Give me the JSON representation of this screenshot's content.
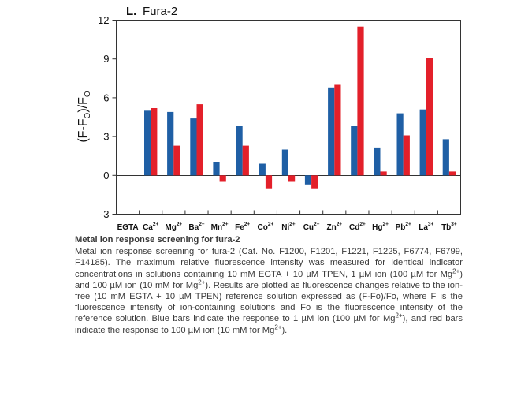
{
  "chart_data": {
    "type": "bar",
    "title_prefix": "L.",
    "title": "Fura-2",
    "ylabel": "(F-F",
    "ylabel_sub": "O",
    "ylabel_tail": ")/F",
    "ylabel_sub2": "O",
    "xlabel": "",
    "ylim": [
      -3,
      12
    ],
    "yticks": [
      "-3",
      "0",
      "3",
      "6",
      "9",
      "12"
    ],
    "grid": false,
    "legend": "none",
    "categories": [
      {
        "base": "EGTA",
        "sup": ""
      },
      {
        "base": "Ca",
        "sup": "2+"
      },
      {
        "base": "Mg",
        "sup": "2+"
      },
      {
        "base": "Ba",
        "sup": "2+"
      },
      {
        "base": "Mn",
        "sup": "2+"
      },
      {
        "base": "Fe",
        "sup": "2+"
      },
      {
        "base": "Co",
        "sup": "2+"
      },
      {
        "base": "Ni",
        "sup": "2+"
      },
      {
        "base": "Cu",
        "sup": "2+"
      },
      {
        "base": "Zn",
        "sup": "2+"
      },
      {
        "base": "Cd",
        "sup": "2+"
      },
      {
        "base": "Hg",
        "sup": "2+"
      },
      {
        "base": "Pb",
        "sup": "2+"
      },
      {
        "base": "La",
        "sup": "3+"
      },
      {
        "base": "Tb",
        "sup": "3+"
      }
    ],
    "series": [
      {
        "color": "#1f5fa5",
        "values": [
          null,
          5.0,
          4.9,
          4.4,
          1.0,
          3.8,
          0.9,
          2.0,
          -0.7,
          6.8,
          3.8,
          2.1,
          4.8,
          5.1,
          2.8
        ]
      },
      {
        "color": "#e3202a",
        "values": [
          null,
          5.2,
          2.3,
          5.5,
          -0.5,
          2.3,
          -1.0,
          -0.5,
          -1.0,
          7.0,
          11.5,
          0.3,
          3.1,
          9.1,
          0.3
        ]
      }
    ]
  },
  "caption": {
    "title": "Metal ion response screening for fura-2",
    "body": "Metal ion response screening for fura-2 (Cat. No. F1200, F1201, F1221, F1225, F6774, F6799, F14185). The maximum relative fluorescence intensity was measured for identical indicator concentrations in solutions containing 10 mM EGTA + 10 µM TPEN, 1 µM ion (100 µM for Mg2+) and 100 µM ion (10 mM for Mg2+). Results are plotted as fluorescence changes relative to the ion-free (10 mM EGTA + 10 µM TPEN) reference solution expressed as (F-Fo)/Fo, where F is the fluorescence intensity of ion-containing solutions and Fo is the fluorescence intensity of the reference solution. Blue bars indicate the response to 1 µM ion (100 µM for Mg2+), and red bars indicate the response to 100 µM ion (10 mM for Mg2+)."
  }
}
